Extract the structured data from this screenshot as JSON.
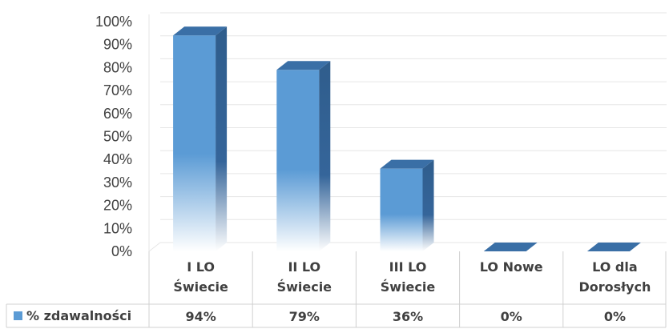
{
  "chart_data": {
    "type": "bar",
    "categories": [
      [
        "I LO",
        "Świecie"
      ],
      [
        "II LO",
        "Świecie"
      ],
      [
        "III LO",
        "Świecie"
      ],
      [
        "LO Nowe"
      ],
      [
        "LO dla",
        "Dorosłych"
      ]
    ],
    "series": [
      {
        "name": "% zdawalności",
        "values": [
          94,
          79,
          36,
          0,
          0
        ],
        "labels": [
          "94%",
          "79%",
          "36%",
          "0%",
          "0%"
        ]
      }
    ],
    "ylim": [
      0,
      100
    ],
    "y_ticks": [
      "0%",
      "10%",
      "20%",
      "30%",
      "40%",
      "50%",
      "60%",
      "70%",
      "80%",
      "90%",
      "100%"
    ],
    "grid": true,
    "legend": "data-table-left",
    "colors": {
      "bar_front": "#5b9bd5",
      "bar_side": "#2f5d8c",
      "bar_top": "#3a6fa6",
      "grid": "#e6e6e6",
      "table_border": "#d0d0d0"
    }
  }
}
